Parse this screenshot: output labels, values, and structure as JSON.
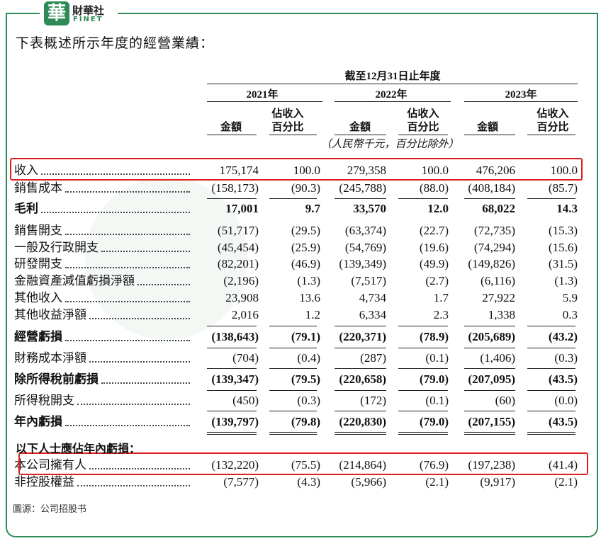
{
  "header": {
    "logo_mark": "華",
    "logo_name": "財華社",
    "logo_en": "FINET"
  },
  "intro": "下表概述所示年度的經營業績：",
  "table": {
    "period": "截至12月31日止年度",
    "years": [
      "2021年",
      "2022年",
      "2023年"
    ],
    "column_headers": [
      "金額",
      "佔收入",
      "百分比"
    ],
    "unit_note": "（人民幣千元，百分比除外）",
    "rows": [
      {
        "label": "收入",
        "values": [
          "175,174",
          "100.0",
          "279,358",
          "100.0",
          "476,206",
          "100.0"
        ],
        "bold": false,
        "highlighted": true
      },
      {
        "label": "銷售成本",
        "values": [
          "(158,173)",
          "(90.3)",
          "(245,788)",
          "(88.0)",
          "(408,184)",
          "(85.7)"
        ],
        "bold": false,
        "highlighted": false
      },
      {
        "label": "毛利",
        "values": [
          "17,001",
          "9.7",
          "33,570",
          "12.0",
          "68,022",
          "14.3"
        ],
        "bold": true,
        "highlighted": false
      },
      {
        "label": "銷售開支",
        "values": [
          "(51,717)",
          "(29.5)",
          "(63,374)",
          "(22.7)",
          "(72,735)",
          "(15.3)"
        ],
        "bold": false,
        "highlighted": false
      },
      {
        "label": "一般及行政開支",
        "values": [
          "(45,454)",
          "(25.9)",
          "(54,769)",
          "(19.6)",
          "(74,294)",
          "(15.6)"
        ],
        "bold": false,
        "highlighted": false
      },
      {
        "label": "研發開支",
        "values": [
          "(82,201)",
          "(46.9)",
          "(139,349)",
          "(49.9)",
          "(149,826)",
          "(31.5)"
        ],
        "bold": false,
        "highlighted": false
      },
      {
        "label": "金融資產減值虧損淨額",
        "values": [
          "(2,196)",
          "(1.3)",
          "(7,517)",
          "(2.7)",
          "(6,116)",
          "(1.3)"
        ],
        "bold": false,
        "highlighted": false
      },
      {
        "label": "其他收入",
        "values": [
          "23,908",
          "13.6",
          "4,734",
          "1.7",
          "27,922",
          "5.9"
        ],
        "bold": false,
        "highlighted": false
      },
      {
        "label": "其他收益淨額",
        "values": [
          "2,016",
          "1.2",
          "6,334",
          "2.3",
          "1,338",
          "0.3"
        ],
        "bold": false,
        "highlighted": false
      },
      {
        "label": "經營虧損",
        "values": [
          "(138,643)",
          "(79.1)",
          "(220,371)",
          "(78.9)",
          "(205,689)",
          "(43.2)"
        ],
        "bold": true,
        "highlighted": false
      },
      {
        "label": "財務成本淨額",
        "values": [
          "(704)",
          "(0.4)",
          "(287)",
          "(0.1)",
          "(1,406)",
          "(0.3)"
        ],
        "bold": false,
        "highlighted": false
      },
      {
        "label": "除所得稅前虧損",
        "values": [
          "(139,347)",
          "(79.5)",
          "(220,658)",
          "(79.0)",
          "(207,095)",
          "(43.5)"
        ],
        "bold": true,
        "highlighted": false
      },
      {
        "label": "所得稅開支",
        "values": [
          "(450)",
          "(0.3)",
          "(172)",
          "(0.1)",
          "(60)",
          "(0.0)"
        ],
        "bold": false,
        "highlighted": false
      },
      {
        "label": "年內虧損",
        "values": [
          "(139,797)",
          "(79.8)",
          "(220,830)",
          "(79.0)",
          "(207,155)",
          "(43.5)"
        ],
        "bold": true,
        "highlighted": false
      }
    ],
    "attribution_heading": "以下人士應佔年內虧損：",
    "attribution_rows": [
      {
        "label": "本公司擁有人",
        "values": [
          "(132,220)",
          "(75.5)",
          "(214,864)",
          "(76.9)",
          "(197,238)",
          "(41.4)"
        ],
        "bold": false,
        "highlighted": true
      },
      {
        "label": "非控股權益",
        "values": [
          "(7,577)",
          "(4.3)",
          "(5,966)",
          "(2.1)",
          "(9,917)",
          "(2.1)"
        ],
        "bold": false,
        "highlighted": false
      }
    ]
  },
  "source": "圖源：公司招股书"
}
